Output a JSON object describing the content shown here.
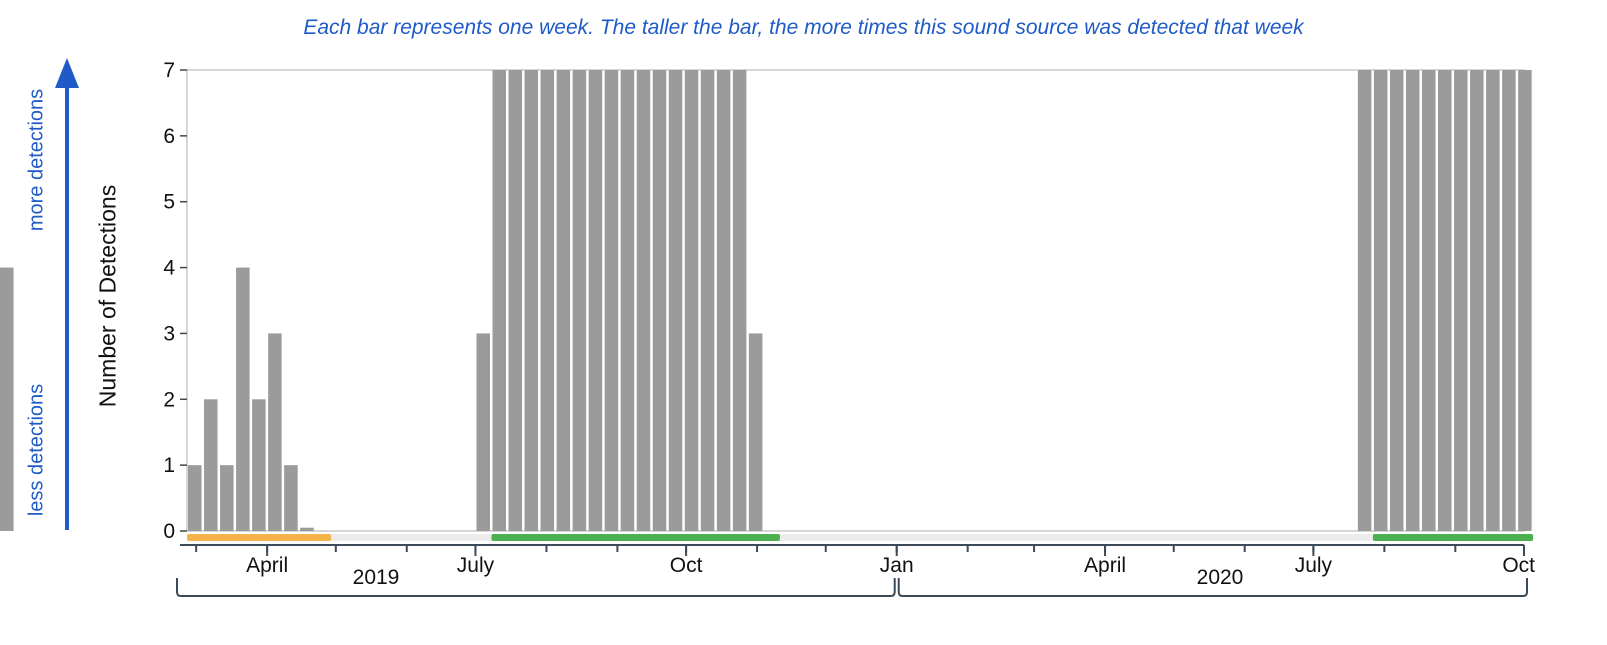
{
  "caption": "Each bar represents one week. The taller the bar, the more times this sound source was detected that week",
  "side_labels": {
    "more": "more detections",
    "less": "less detections"
  },
  "colors": {
    "bar": "#9b9b9b",
    "caption": "#1f5bc6",
    "arrow": "#1f5bc6",
    "orange_range": "#f5b44a",
    "green_range": "#4caf50",
    "axis": "#3c4a5a",
    "frame": "#c8c8c8"
  },
  "chart_data": {
    "type": "bar",
    "title": "",
    "xlabel": "",
    "ylabel": "Number of Detections",
    "ylim": [
      0,
      7
    ],
    "yticks": [
      0,
      1,
      2,
      3,
      4,
      5,
      6,
      7
    ],
    "xlim": [
      "2019-02-25",
      "2020-10-01"
    ],
    "grid": false,
    "x_ticks": [
      {
        "date": "2019-04-01",
        "label": "April"
      },
      {
        "date": "2019-07-01",
        "label": "July"
      },
      {
        "date": "2019-10-01",
        "label": "Oct"
      },
      {
        "date": "2020-01-01",
        "label": "Jan"
      },
      {
        "date": "2020-04-01",
        "label": "April"
      },
      {
        "date": "2020-07-01",
        "label": "July"
      },
      {
        "date": "2020-10-01",
        "label": "Oct"
      }
    ],
    "years": [
      {
        "label": "2019",
        "start": "2019-02-25",
        "end": "2020-01-01"
      },
      {
        "label": "2020",
        "start": "2020-01-01",
        "end": "2020-10-01"
      }
    ],
    "week_start_dates": [
      "2019-02-25",
      "2019-03-04",
      "2019-03-11",
      "2019-03-18",
      "2019-03-25",
      "2019-04-01",
      "2019-04-08",
      "2019-04-15",
      "2019-04-22",
      "2019-04-29",
      "2019-05-06",
      "2019-05-13",
      "2019-05-20",
      "2019-05-27",
      "2019-06-03",
      "2019-06-10",
      "2019-06-17",
      "2019-06-24",
      "2019-07-01",
      "2019-07-08",
      "2019-07-15",
      "2019-07-22",
      "2019-07-29",
      "2019-08-05",
      "2019-08-12",
      "2019-08-19",
      "2019-08-26",
      "2019-09-02",
      "2019-09-09",
      "2019-09-16",
      "2019-09-23",
      "2019-09-30",
      "2019-10-07",
      "2019-10-14",
      "2019-10-21",
      "2019-10-28",
      "2019-11-04",
      "2019-11-11",
      "2019-11-18",
      "2019-11-25",
      "2019-12-02",
      "2019-12-09",
      "2019-12-16",
      "2019-12-23",
      "2019-12-30",
      "2020-01-06",
      "2020-01-13",
      "2020-01-20",
      "2020-01-27",
      "2020-02-03",
      "2020-02-10",
      "2020-02-17",
      "2020-02-24",
      "2020-03-02",
      "2020-03-09",
      "2020-03-16",
      "2020-03-23",
      "2020-03-30",
      "2020-04-06",
      "2020-04-13",
      "2020-04-20",
      "2020-04-27",
      "2020-05-04",
      "2020-05-11",
      "2020-05-18",
      "2020-05-25",
      "2020-06-01",
      "2020-06-08",
      "2020-06-15",
      "2020-06-22",
      "2020-06-29",
      "2020-07-06",
      "2020-07-13",
      "2020-07-20",
      "2020-07-27",
      "2020-08-03",
      "2020-08-10",
      "2020-08-17",
      "2020-08-24",
      "2020-08-31",
      "2020-09-07",
      "2020-09-14",
      "2020-09-21",
      "2020-09-28"
    ],
    "values": [
      1,
      2,
      1,
      4,
      2,
      3,
      1,
      0.05,
      0,
      0,
      0,
      0,
      0,
      0,
      0,
      0,
      0,
      0,
      3,
      7,
      7,
      7,
      7,
      7,
      7,
      7,
      7,
      7,
      7,
      7,
      7,
      7,
      7,
      7,
      7,
      3,
      0,
      0,
      0,
      0,
      0,
      0,
      0,
      0,
      0,
      0,
      0,
      0,
      0,
      0,
      0,
      0,
      0,
      0,
      0,
      0,
      0,
      0,
      0,
      0,
      0,
      0,
      0,
      0,
      0,
      0,
      0,
      0,
      0,
      0,
      0,
      0,
      0,
      7,
      7,
      7,
      7,
      7,
      7,
      7,
      7,
      7,
      7,
      7,
      4
    ],
    "period_ranges": [
      {
        "color": "orange",
        "start": "2019-02-25",
        "end": "2019-04-22"
      },
      {
        "color": "green",
        "start": "2019-07-08",
        "end": "2019-11-04"
      },
      {
        "color": "green",
        "start": "2020-07-27",
        "end": "2020-09-28"
      }
    ]
  }
}
